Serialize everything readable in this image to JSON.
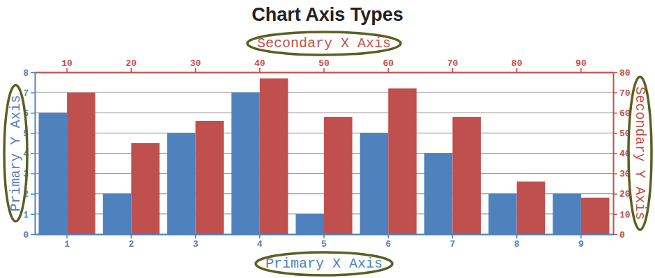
{
  "chart_data": {
    "type": "bar",
    "title": "Chart Axis Types",
    "x_label": "Primary X Axis",
    "x2_label": "Secondary X Axis",
    "y_label": "Primary Y Axis",
    "y2_label": "Secondary Y Axis",
    "categories": [
      "1",
      "2",
      "3",
      "4",
      "5",
      "6",
      "7",
      "8",
      "9"
    ],
    "x2_categories": [
      "10",
      "20",
      "30",
      "40",
      "50",
      "60",
      "70",
      "80",
      "90"
    ],
    "series": [
      {
        "color": "#4f81bd",
        "values": [
          6,
          2,
          5,
          7,
          1,
          5,
          4,
          2,
          2
        ]
      },
      {
        "color": "#c0504d",
        "axis": "y2",
        "values": [
          70,
          45,
          56,
          77,
          58,
          72,
          58,
          26,
          18
        ]
      }
    ],
    "ylim": [
      0,
      8
    ],
    "yticks": [
      0,
      1,
      2,
      3,
      4,
      5,
      6,
      7,
      8
    ],
    "y2lim": [
      0,
      80
    ],
    "y2ticks": [
      0,
      10,
      20,
      30,
      40,
      50,
      60,
      70,
      80
    ],
    "grid": true
  }
}
